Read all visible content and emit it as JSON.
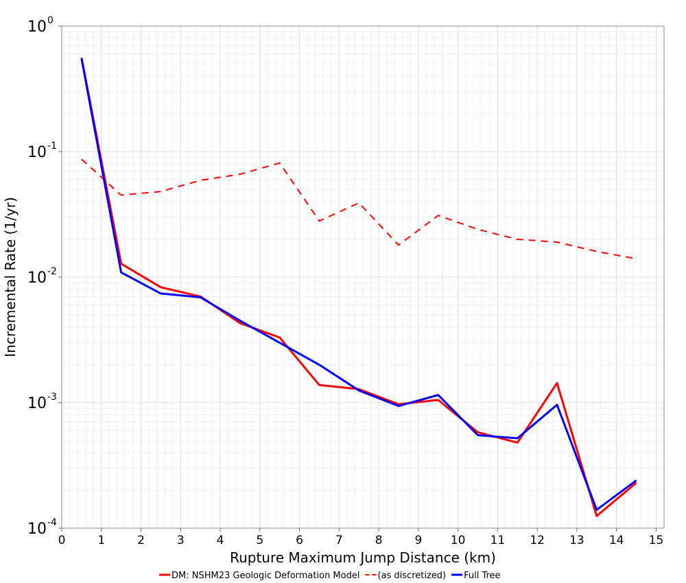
{
  "chart_data": {
    "type": "line",
    "title": "",
    "xlabel": "Rupture Maximum Jump Distance (km)",
    "ylabel": "Incremental Rate (1/yr)",
    "xlim": [
      0,
      15.2
    ],
    "ylim": [
      0.0001,
      1
    ],
    "yscale": "log",
    "grid": true,
    "legend_position": "bottom",
    "x_ticks": [
      0,
      1,
      2,
      3,
      4,
      5,
      6,
      7,
      8,
      9,
      10,
      11,
      12,
      13,
      14,
      15
    ],
    "y_ticks": [
      {
        "value": 1,
        "base": "10",
        "exp": "0"
      },
      {
        "value": 0.1,
        "base": "10",
        "exp": "-1"
      },
      {
        "value": 0.01,
        "base": "10",
        "exp": "-2"
      },
      {
        "value": 0.001,
        "base": "10",
        "exp": "-3"
      },
      {
        "value": 0.0001,
        "base": "10",
        "exp": "-4"
      }
    ],
    "x": [
      0.5,
      1.5,
      2.5,
      3.5,
      4.5,
      5.5,
      6.5,
      7.5,
      8.5,
      9.5,
      10.5,
      11.5,
      12.5,
      13.5,
      14.5
    ],
    "series": [
      {
        "name": "DM: NSHM23 Geologic Deformation Model",
        "color": "#ff0000",
        "dash": "solid",
        "values": [
          0.56,
          0.0128,
          0.0083,
          0.007,
          0.0043,
          0.0033,
          0.00138,
          0.00128,
          0.00097,
          0.00105,
          0.00058,
          0.00048,
          0.00143,
          0.000125,
          0.00023
        ]
      },
      {
        "name": "(as discretized)",
        "color": "#ff0000",
        "dash": "dashed",
        "values": [
          0.087,
          0.045,
          0.048,
          0.059,
          0.066,
          0.081,
          0.028,
          0.039,
          0.018,
          0.031,
          0.024,
          0.02,
          0.019,
          0.016,
          0.014
        ]
      },
      {
        "name": "Full Tree",
        "color": "#0000ff",
        "dash": "solid",
        "values": [
          0.55,
          0.0109,
          0.0074,
          0.0069,
          0.0045,
          0.003,
          0.002,
          0.00125,
          0.00094,
          0.00115,
          0.00055,
          0.00052,
          0.00096,
          0.00014,
          0.00024
        ]
      }
    ]
  }
}
